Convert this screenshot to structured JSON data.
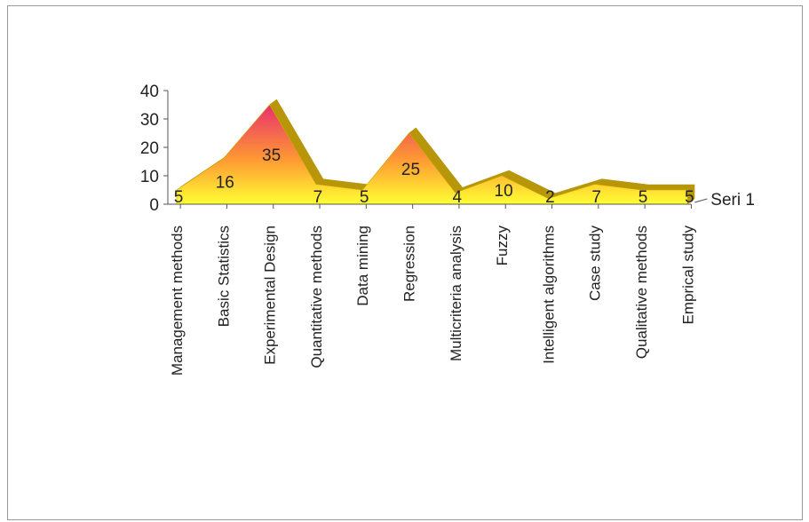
{
  "chart_data": {
    "type": "area",
    "style": "3d",
    "categories": [
      "Management methods",
      "Basic Statistics",
      "Experimental Design",
      "Quantitative methods",
      "Data mining",
      "Regression",
      "Multicriteria analysis",
      "Fuzzy",
      "Intelligent algorithms",
      "Case study",
      "Qualitative methods",
      "Emprical study"
    ],
    "series": [
      {
        "name": "Seri 1",
        "values": [
          5,
          16,
          35,
          7,
          5,
          25,
          4,
          10,
          2,
          7,
          5,
          5
        ]
      }
    ],
    "ylim": [
      0,
      40
    ],
    "yticks": [
      0,
      10,
      20,
      30,
      40
    ],
    "grid": false,
    "data_labels": true,
    "series_label_position": "right",
    "colors": {
      "low": "#ffff33",
      "mid": "#ff9933",
      "high": "#e8306e",
      "side": "#b8960a",
      "axis": "#555555"
    }
  }
}
